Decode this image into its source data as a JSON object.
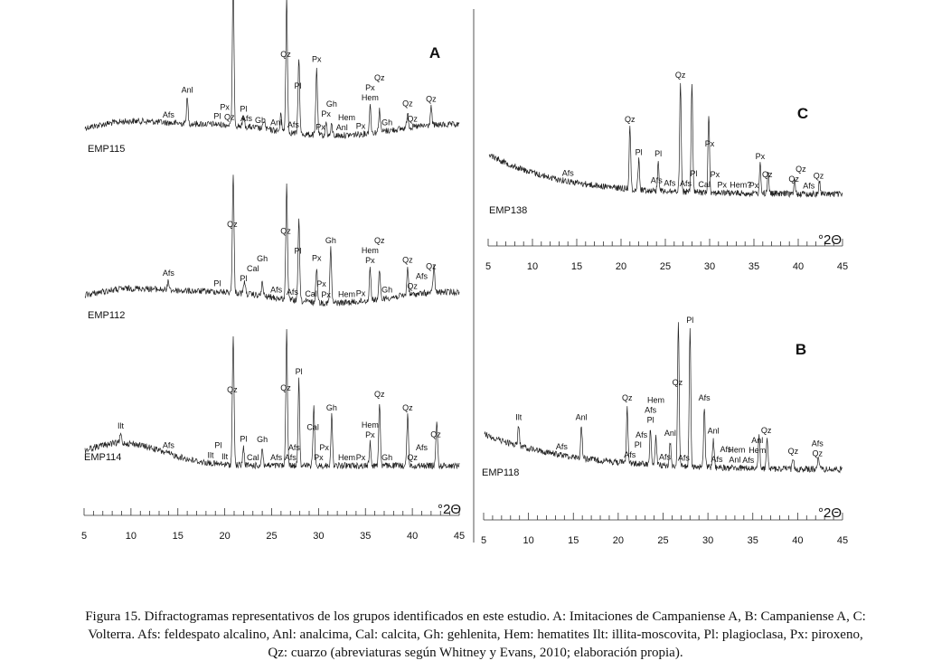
{
  "caption": {
    "line1": "Figura 15. Difractogramas representativos de los grupos identificados en este estudio. A: Imitaciones de Campaniense A, B: Campaniense A, C:",
    "line2": "Volterra. Afs: feldespato alcalino, Anl: analcima, Cal: calcita, Gh: gehlenita, Hem: hematites Ilt: illita-moscovita, Pl: plagioclasa, Px: piroxeno,",
    "line3": "Qz: cuarzo (abreviaturas según Whitney y Evans, 2010; elaboración propia)."
  },
  "chart_data": [
    {
      "type": "line",
      "panel": "A",
      "xlim": [
        5,
        45
      ],
      "xticks": [
        5,
        10,
        15,
        20,
        25,
        30,
        35,
        40,
        45
      ],
      "xunit": "°2Θ",
      "series": [
        {
          "name": "EMP115",
          "labels": [
            {
              "t": "Afs",
              "x": 14
            },
            {
              "t": "Anl",
              "x": 16
            },
            {
              "t": "Qz",
              "x": 20.5
            },
            {
              "t": "Pl",
              "x": 19.2
            },
            {
              "t": "Px",
              "x": 20
            },
            {
              "t": "Pl",
              "x": 22
            },
            {
              "t": "Afs",
              "x": 22.3
            },
            {
              "t": "Gh",
              "x": 23.8
            },
            {
              "t": "Anl",
              "x": 25.5
            },
            {
              "t": "Qz",
              "x": 26.5
            },
            {
              "t": "Afs",
              "x": 27.3
            },
            {
              "t": "Pl",
              "x": 27.8
            },
            {
              "t": "Px",
              "x": 29.8
            },
            {
              "t": "Px",
              "x": 30.2
            },
            {
              "t": "Px",
              "x": 30.8
            },
            {
              "t": "Gh",
              "x": 31.4
            },
            {
              "t": "Anl",
              "x": 32.5
            },
            {
              "t": "Hem",
              "x": 33
            },
            {
              "t": "Px",
              "x": 34.5
            },
            {
              "t": "Hem",
              "x": 35.5
            },
            {
              "t": "Px",
              "x": 35.5
            },
            {
              "t": "Qz",
              "x": 36.5
            },
            {
              "t": "Gh",
              "x": 37.3
            },
            {
              "t": "Qz",
              "x": 39.5
            },
            {
              "t": "Qz",
              "x": 40
            },
            {
              "t": "Qz",
              "x": 42
            }
          ]
        },
        {
          "name": "EMP112",
          "labels": [
            {
              "t": "Afs",
              "x": 14
            },
            {
              "t": "Pl",
              "x": 19.2
            },
            {
              "t": "Qz",
              "x": 20.8
            },
            {
              "t": "Pl",
              "x": 22
            },
            {
              "t": "Cal",
              "x": 23
            },
            {
              "t": "Gh",
              "x": 24
            },
            {
              "t": "Afs",
              "x": 25.5
            },
            {
              "t": "Qz",
              "x": 26.5
            },
            {
              "t": "Afs",
              "x": 27.2
            },
            {
              "t": "Pl",
              "x": 27.8
            },
            {
              "t": "Cal",
              "x": 29.2
            },
            {
              "t": "Px",
              "x": 29.8
            },
            {
              "t": "Px",
              "x": 30.3
            },
            {
              "t": "Px",
              "x": 30.8
            },
            {
              "t": "Gh",
              "x": 31.3
            },
            {
              "t": "Hem",
              "x": 33
            },
            {
              "t": "Px",
              "x": 34.5
            },
            {
              "t": "Px",
              "x": 35.5
            },
            {
              "t": "Hem",
              "x": 35.5
            },
            {
              "t": "Qz",
              "x": 36.5
            },
            {
              "t": "Gh",
              "x": 37.3
            },
            {
              "t": "Qz",
              "x": 39.5
            },
            {
              "t": "Qz",
              "x": 40
            },
            {
              "t": "Afs",
              "x": 41
            },
            {
              "t": "Qz",
              "x": 42
            }
          ]
        },
        {
          "name": "EMP114",
          "labels": [
            {
              "t": "Ilt",
              "x": 8.9
            },
            {
              "t": "Afs",
              "x": 14
            },
            {
              "t": "Ilt",
              "x": 18.5
            },
            {
              "t": "Pl",
              "x": 19.3
            },
            {
              "t": "Ilt",
              "x": 20
            },
            {
              "t": "Qz",
              "x": 20.8
            },
            {
              "t": "Pl",
              "x": 22
            },
            {
              "t": "Cal",
              "x": 23
            },
            {
              "t": "Gh",
              "x": 24
            },
            {
              "t": "Afs",
              "x": 25.5
            },
            {
              "t": "Qz",
              "x": 26.5
            },
            {
              "t": "Afs",
              "x": 27
            },
            {
              "t": "Afs",
              "x": 27.4
            },
            {
              "t": "Pl",
              "x": 27.9
            },
            {
              "t": "Cal",
              "x": 29.4
            },
            {
              "t": "Px",
              "x": 30
            },
            {
              "t": "Px",
              "x": 30.6
            },
            {
              "t": "Gh",
              "x": 31.4
            },
            {
              "t": "Hem",
              "x": 33
            },
            {
              "t": "Px",
              "x": 34.5
            },
            {
              "t": "Px",
              "x": 35.5
            },
            {
              "t": "Hem",
              "x": 35.5
            },
            {
              "t": "Qz",
              "x": 36.5
            },
            {
              "t": "Gh",
              "x": 37.3
            },
            {
              "t": "Qz",
              "x": 39.5
            },
            {
              "t": "Qz",
              "x": 40
            },
            {
              "t": "Afs",
              "x": 41
            },
            {
              "t": "Qz",
              "x": 42.5
            }
          ]
        }
      ]
    },
    {
      "type": "line",
      "panel": "C",
      "xlim": [
        5,
        45
      ],
      "xticks": [
        5,
        10,
        15,
        20,
        25,
        30,
        35,
        40,
        45
      ],
      "xunit": "°2Θ",
      "series": [
        {
          "name": "EMP138",
          "labels": [
            {
              "t": "Afs",
              "x": 14
            },
            {
              "t": "Qz",
              "x": 21
            },
            {
              "t": "Pl",
              "x": 22
            },
            {
              "t": "Afs",
              "x": 24
            },
            {
              "t": "Pl",
              "x": 24.2
            },
            {
              "t": "Afs",
              "x": 25.5
            },
            {
              "t": "Qz",
              "x": 26.7
            },
            {
              "t": "Afs",
              "x": 27.3
            },
            {
              "t": "Pl",
              "x": 28.2
            },
            {
              "t": "Cal",
              "x": 29.4
            },
            {
              "t": "Px",
              "x": 30
            },
            {
              "t": "Px",
              "x": 30.6
            },
            {
              "t": "Px",
              "x": 31.4
            },
            {
              "t": "Hem?",
              "x": 33.5
            },
            {
              "t": "Px",
              "x": 35
            },
            {
              "t": "Px",
              "x": 35.7
            },
            {
              "t": "Qz",
              "x": 36.5
            },
            {
              "t": "Qz",
              "x": 39.5
            },
            {
              "t": "Qz",
              "x": 40.3
            },
            {
              "t": "Afs",
              "x": 41.2
            },
            {
              "t": "Qz",
              "x": 42.3
            }
          ]
        }
      ]
    },
    {
      "type": "line",
      "panel": "B",
      "xlim": [
        5,
        45
      ],
      "xticks": [
        5,
        10,
        15,
        20,
        25,
        30,
        35,
        40,
        45
      ],
      "xunit": "°2Θ",
      "series": [
        {
          "name": "EMP118",
          "labels": [
            {
              "t": "Ilt",
              "x": 8.9
            },
            {
              "t": "Afs",
              "x": 13.7
            },
            {
              "t": "Anl",
              "x": 15.9
            },
            {
              "t": "Qz",
              "x": 21
            },
            {
              "t": "Afs",
              "x": 21.3
            },
            {
              "t": "Pl",
              "x": 22.2
            },
            {
              "t": "Afs",
              "x": 22.6
            },
            {
              "t": "Pl",
              "x": 23.6
            },
            {
              "t": "Afs",
              "x": 23.6
            },
            {
              "t": "Hem",
              "x": 24.2
            },
            {
              "t": "Afs",
              "x": 25.2
            },
            {
              "t": "Anl",
              "x": 25.8
            },
            {
              "t": "Qz",
              "x": 26.6
            },
            {
              "t": "Afs",
              "x": 27.3
            },
            {
              "t": "Pl",
              "x": 28
            },
            {
              "t": "Afs",
              "x": 29.6
            },
            {
              "t": "Anl",
              "x": 30.6
            },
            {
              "t": "Afs",
              "x": 31
            },
            {
              "t": "Afs",
              "x": 32
            },
            {
              "t": "Anl",
              "x": 33
            },
            {
              "t": "Hem",
              "x": 33.2
            },
            {
              "t": "Afs",
              "x": 34.5
            },
            {
              "t": "Hem",
              "x": 35.5
            },
            {
              "t": "Anl",
              "x": 35.5
            },
            {
              "t": "Qz",
              "x": 36.5
            },
            {
              "t": "Qz",
              "x": 39.5
            },
            {
              "t": "Qz",
              "x": 42.2
            },
            {
              "t": "Afs",
              "x": 42.2
            }
          ]
        }
      ]
    }
  ]
}
